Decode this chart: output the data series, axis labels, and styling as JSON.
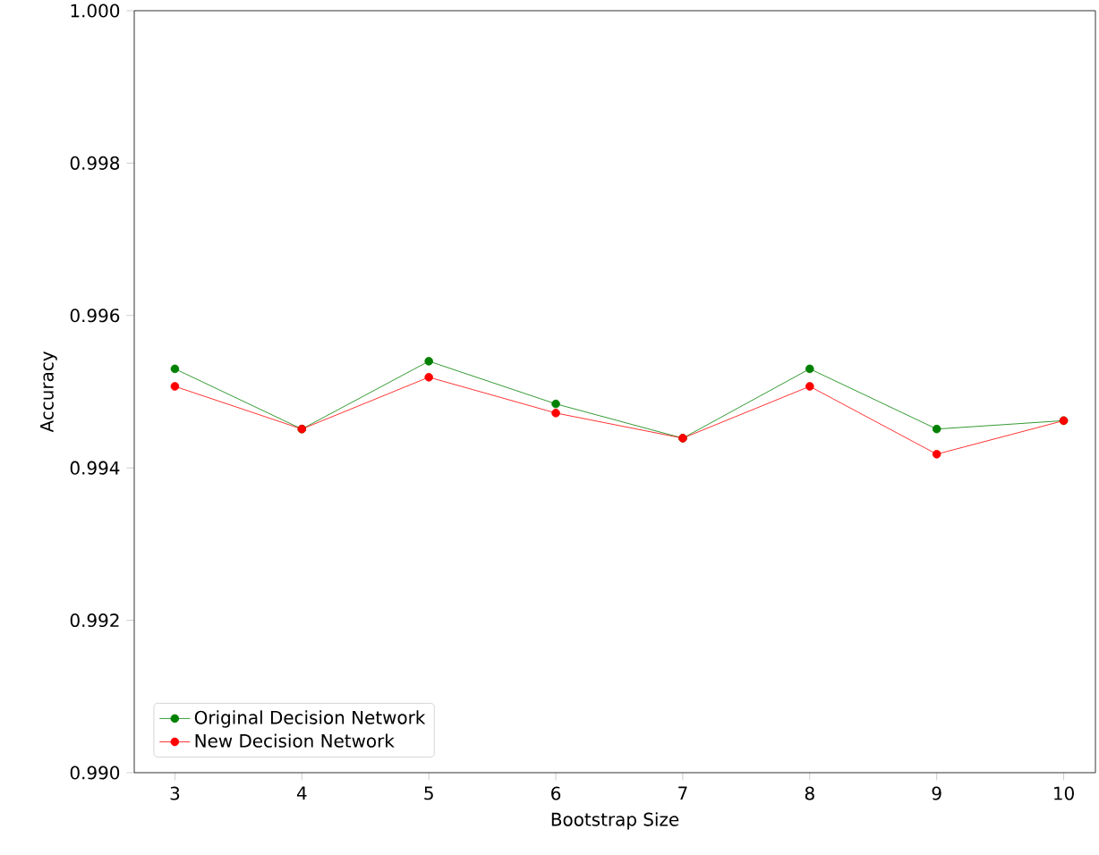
{
  "chart_data": {
    "type": "line",
    "xlabel": "Bootstrap Size",
    "ylabel": "Accuracy",
    "x": [
      3,
      4,
      5,
      6,
      7,
      8,
      9,
      10
    ],
    "series": [
      {
        "name": "Original Decision Network",
        "color": "#008000",
        "values": [
          0.9953,
          0.99451,
          0.9954,
          0.99484,
          0.99439,
          0.9953,
          0.99451,
          0.99462
        ]
      },
      {
        "name": "New Decision Network",
        "color": "#ff0000",
        "values": [
          0.99507,
          0.99451,
          0.99519,
          0.99472,
          0.99439,
          0.99507,
          0.99418,
          0.99462
        ]
      }
    ],
    "xlim": [
      2.68,
      10.25
    ],
    "ylim": [
      0.99,
      1.0
    ],
    "xticks": [
      3,
      4,
      5,
      6,
      7,
      8,
      9,
      10
    ],
    "yticks": [
      {
        "value": 0.99,
        "label": "0.990"
      },
      {
        "value": 0.992,
        "label": "0.992"
      },
      {
        "value": 0.994,
        "label": "0.994"
      },
      {
        "value": 0.996,
        "label": "0.996"
      },
      {
        "value": 0.998,
        "label": "0.998"
      },
      {
        "value": 1.0,
        "label": "1.000"
      }
    ],
    "legend": "bottom left",
    "marker": "circle",
    "line_style": "solid",
    "grid": false
  }
}
